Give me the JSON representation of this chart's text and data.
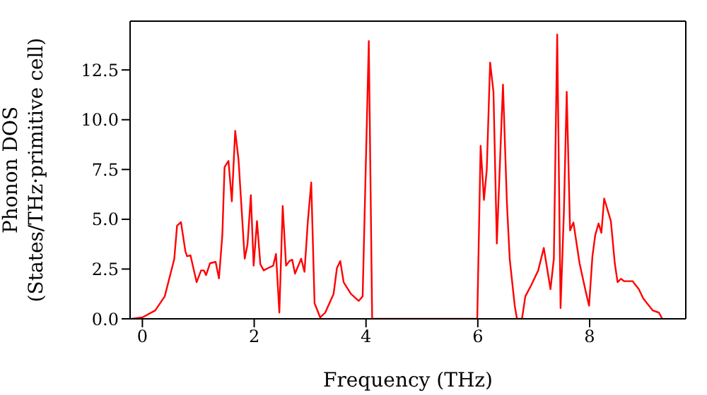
{
  "chart_data": {
    "type": "line",
    "xlabel": "Frequency (THz)",
    "ylabel": "Phonon DOS\n(States/THz·primitive cell)",
    "xlim": [
      -0.22,
      9.72
    ],
    "ylim": [
      0,
      14.95
    ],
    "xticks": [
      0,
      2,
      4,
      6,
      8
    ],
    "yticks": [
      {
        "value": 0,
        "label": "0.0"
      },
      {
        "value": 2.5,
        "label": "2.5"
      },
      {
        "value": 5,
        "label": "5.0"
      },
      {
        "value": 7.5,
        "label": "7.5"
      },
      {
        "value": 10,
        "label": "10.0"
      },
      {
        "value": 12.5,
        "label": "12.5"
      }
    ],
    "grid": false,
    "marker": "none",
    "line_style": "solid",
    "series": [
      {
        "color": "#ff0000",
        "x": [
          -0.19,
          0,
          0.23,
          0.4,
          0.57,
          0.62,
          0.69,
          0.77,
          0.8,
          0.86,
          0.97,
          1.05,
          1.1,
          1.14,
          1.21,
          1.31,
          1.37,
          1.43,
          1.47,
          1.54,
          1.6,
          1.66,
          1.72,
          1.83,
          1.88,
          1.94,
          1.99,
          2.05,
          2.11,
          2.17,
          2.25,
          2.34,
          2.39,
          2.45,
          2.51,
          2.57,
          2.63,
          2.68,
          2.73,
          2.84,
          2.9,
          2.96,
          3.02,
          3.08,
          3.18,
          3.27,
          3.42,
          3.48,
          3.54,
          3.6,
          3.73,
          3.87,
          3.94,
          4.05,
          4.11,
          5.99,
          6.05,
          6.11,
          6.16,
          6.22,
          6.28,
          6.34,
          6.45,
          6.52,
          6.57,
          6.66,
          6.7,
          6.79,
          6.85,
          6.96,
          7.08,
          7.18,
          7.3,
          7.36,
          7.42,
          7.48,
          7.54,
          7.59,
          7.65,
          7.71,
          7.82,
          7.93,
          7.99,
          8.05,
          8.1,
          8.16,
          8.21,
          8.26,
          8.38,
          8.45,
          8.5,
          8.56,
          8.62,
          8.77,
          8.88,
          8.96,
          9.13,
          9.24,
          9.3
        ],
        "values": [
          0,
          0.07,
          0.42,
          1.13,
          3.0,
          4.67,
          4.86,
          3.38,
          3.14,
          3.19,
          1.84,
          2.43,
          2.43,
          2.2,
          2.79,
          2.86,
          2.03,
          4.2,
          7.62,
          7.93,
          5.9,
          9.44,
          7.98,
          3.02,
          3.73,
          6.21,
          2.67,
          4.91,
          2.74,
          2.43,
          2.55,
          2.67,
          3.26,
          0.31,
          5.67,
          2.67,
          2.9,
          2.97,
          2.27,
          3.02,
          2.36,
          4.91,
          6.85,
          0.78,
          0.07,
          0.31,
          1.25,
          2.55,
          2.9,
          1.84,
          1.25,
          0.9,
          1.13,
          13.95,
          0,
          0,
          8.69,
          5.97,
          7.5,
          12.87,
          11.4,
          3.78,
          11.76,
          5.85,
          3.02,
          0.66,
          0,
          0,
          1.13,
          1.72,
          2.43,
          3.56,
          1.49,
          3.02,
          14.28,
          0.54,
          5.38,
          11.4,
          4.44,
          4.84,
          2.79,
          1.37,
          0.66,
          3.14,
          4.2,
          4.79,
          4.32,
          6.04,
          4.91,
          2.79,
          1.84,
          2.01,
          1.89,
          1.89,
          1.49,
          1.02,
          0.42,
          0.31,
          0
        ]
      }
    ]
  }
}
